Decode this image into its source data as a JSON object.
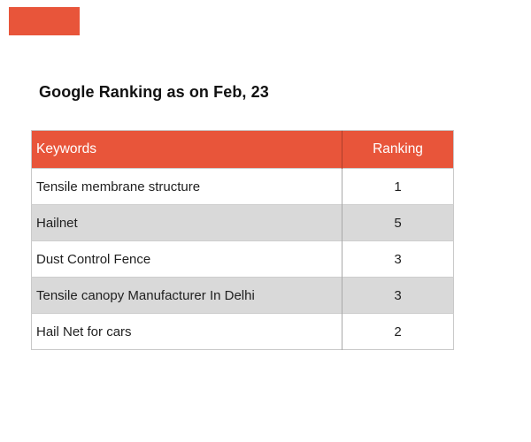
{
  "colors": {
    "accent": "#E8553A",
    "alt_row": "#D9D9D9",
    "header_text": "#FFFFFF",
    "body_text": "#1F1F1F",
    "border": "#C9C9C9",
    "divider": "#A9A9A9"
  },
  "title": "Google Ranking as on Feb, 23",
  "table": {
    "columns": [
      "Keywords",
      "Ranking"
    ],
    "rows": [
      {
        "keyword": "Tensile membrane structure",
        "ranking": "1"
      },
      {
        "keyword": "Hailnet",
        "ranking": "5"
      },
      {
        "keyword": "Dust Control Fence",
        "ranking": "3"
      },
      {
        "keyword": "Tensile canopy Manufacturer In Delhi",
        "ranking": "3"
      },
      {
        "keyword": "Hail Net for cars",
        "ranking": "2"
      }
    ]
  },
  "chart_data": {
    "type": "table",
    "title": "Google Ranking as on Feb, 23",
    "columns": [
      "Keywords",
      "Ranking"
    ],
    "rows": [
      [
        "Tensile membrane structure",
        1
      ],
      [
        "Hailnet",
        5
      ],
      [
        "Dust Control Fence",
        3
      ],
      [
        "Tensile canopy Manufacturer In Delhi",
        3
      ],
      [
        "Hail Net for cars",
        2
      ]
    ],
    "layout_hints": {
      "header_background": "#E8553A",
      "alternating_row_background": "#D9D9D9",
      "stripe_pattern": "even rows white, odd rows gray"
    }
  }
}
